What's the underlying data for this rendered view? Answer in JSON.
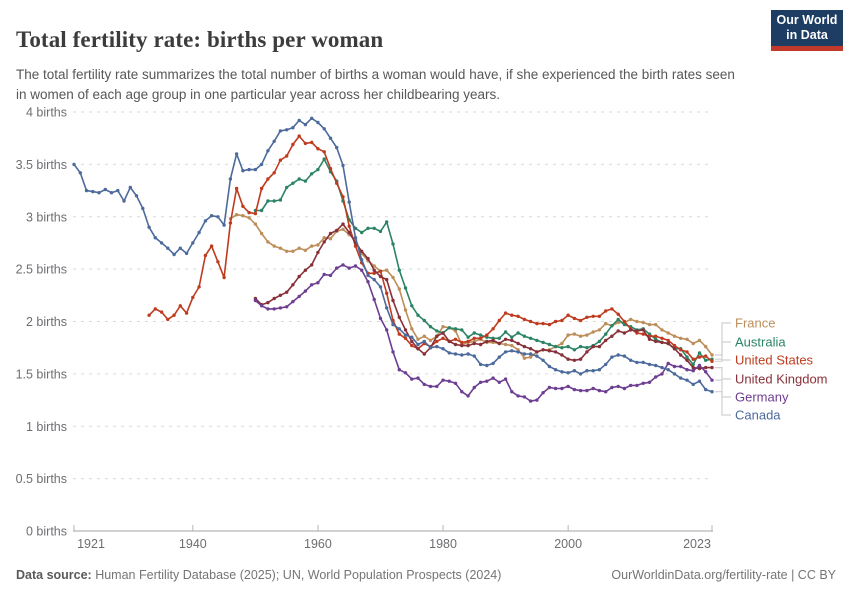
{
  "header": {
    "title": "Total fertility rate: births per woman",
    "subtitle": "The total fertility rate summarizes the total number of births a woman would have, if she experienced the birth rates seen in women of each age group in one particular year across her childbearing years.",
    "logo_line1": "Our World",
    "logo_line2": "in Data"
  },
  "footer": {
    "source_label": "Data source:",
    "source_text": " Human Fertility Database (2025); UN, World Population Prospects (2024)",
    "credit": "OurWorldinData.org/fertility-rate | CC BY"
  },
  "colors": {
    "logo_navy": "#1d3d63",
    "logo_red": "#c0392b",
    "grid": "#dadada",
    "axis": "#a3a3a3",
    "tick": "#b5b5b5",
    "connector": "#d0d0d0",
    "axis_text": "#6e6e73"
  },
  "chart_data": {
    "type": "line",
    "title": "Total fertility rate: births per woman",
    "xlabel": "",
    "ylabel": "births per woman",
    "xlim": [
      1921,
      2023
    ],
    "ylim": [
      0,
      4
    ],
    "x_ticks": [
      1921,
      1940,
      1960,
      1980,
      2000,
      2023
    ],
    "y_ticks": [
      0,
      0.5,
      1,
      1.5,
      2,
      2.5,
      3,
      3.5,
      4
    ],
    "y_tick_suffix": " births",
    "grid": "horizontal-dashed",
    "legend_position": "right-of-lines",
    "series": [
      {
        "name": "France",
        "color": "#BC8E5A",
        "start_year": 1946,
        "values": [
          2.98,
          3.02,
          3.01,
          2.99,
          2.93,
          2.84,
          2.76,
          2.72,
          2.7,
          2.67,
          2.67,
          2.7,
          2.68,
          2.72,
          2.73,
          2.8,
          2.79,
          2.86,
          2.88,
          2.83,
          2.78,
          2.65,
          2.58,
          2.53,
          2.48,
          2.49,
          2.42,
          2.31,
          2.11,
          1.93,
          1.83,
          1.86,
          1.82,
          1.86,
          1.95,
          1.94,
          1.91,
          1.78,
          1.8,
          1.81,
          1.83,
          1.8,
          1.8,
          1.79,
          1.78,
          1.77,
          1.73,
          1.65,
          1.66,
          1.71,
          1.73,
          1.73,
          1.76,
          1.79,
          1.87,
          1.88,
          1.86,
          1.87,
          1.9,
          1.92,
          1.98,
          1.96,
          1.99,
          1.99,
          2.02,
          2.0,
          1.99,
          1.97,
          1.97,
          1.92,
          1.89,
          1.86,
          1.84,
          1.83,
          1.79,
          1.82,
          1.76,
          1.68
        ]
      },
      {
        "name": "Australia",
        "color": "#2C8465",
        "start_year": 1950,
        "values": [
          3.06,
          3.06,
          3.15,
          3.15,
          3.16,
          3.28,
          3.32,
          3.36,
          3.34,
          3.41,
          3.45,
          3.55,
          3.43,
          3.34,
          3.15,
          2.97,
          2.89,
          2.85,
          2.89,
          2.89,
          2.86,
          2.95,
          2.74,
          2.49,
          2.32,
          2.15,
          2.06,
          2.01,
          1.95,
          1.91,
          1.89,
          1.94,
          1.93,
          1.92,
          1.85,
          1.89,
          1.87,
          1.85,
          1.84,
          1.84,
          1.9,
          1.85,
          1.89,
          1.86,
          1.84,
          1.82,
          1.8,
          1.78,
          1.76,
          1.75,
          1.76,
          1.73,
          1.76,
          1.75,
          1.77,
          1.81,
          1.88,
          1.96,
          2.02,
          1.97,
          1.95,
          1.92,
          1.93,
          1.88,
          1.83,
          1.8,
          1.79,
          1.74,
          1.74,
          1.66,
          1.59,
          1.7,
          1.63,
          1.64
        ]
      },
      {
        "name": "United States",
        "color": "#BF3B1F",
        "start_year": 1933,
        "values": [
          2.06,
          2.12,
          2.09,
          2.02,
          2.06,
          2.15,
          2.08,
          2.23,
          2.33,
          2.63,
          2.72,
          2.57,
          2.42,
          2.94,
          3.27,
          3.1,
          3.04,
          3.03,
          3.27,
          3.36,
          3.42,
          3.54,
          3.58,
          3.69,
          3.77,
          3.7,
          3.71,
          3.65,
          3.62,
          3.46,
          3.32,
          3.19,
          2.91,
          2.72,
          2.56,
          2.46,
          2.46,
          2.48,
          2.27,
          2.01,
          1.88,
          1.84,
          1.77,
          1.74,
          1.79,
          1.76,
          1.81,
          1.84,
          1.81,
          1.83,
          1.8,
          1.81,
          1.84,
          1.84,
          1.87,
          1.93,
          2.01,
          2.08,
          2.06,
          2.05,
          2.02,
          2.0,
          1.98,
          1.98,
          1.97,
          2.0,
          2.01,
          2.06,
          2.03,
          2.01,
          2.04,
          2.05,
          2.05,
          2.1,
          2.12,
          2.07,
          2.0,
          1.93,
          1.89,
          1.88,
          1.86,
          1.86,
          1.84,
          1.82,
          1.77,
          1.73,
          1.71,
          1.64,
          1.66,
          1.67,
          1.62
        ]
      },
      {
        "name": "United Kingdom",
        "color": "#883039",
        "start_year": 1950,
        "values": [
          2.22,
          2.16,
          2.18,
          2.22,
          2.25,
          2.28,
          2.35,
          2.43,
          2.49,
          2.54,
          2.66,
          2.76,
          2.84,
          2.87,
          2.93,
          2.85,
          2.75,
          2.67,
          2.6,
          2.49,
          2.43,
          2.4,
          2.2,
          2.04,
          1.92,
          1.81,
          1.74,
          1.69,
          1.75,
          1.86,
          1.89,
          1.81,
          1.78,
          1.77,
          1.77,
          1.79,
          1.78,
          1.81,
          1.82,
          1.79,
          1.83,
          1.82,
          1.79,
          1.76,
          1.74,
          1.71,
          1.73,
          1.72,
          1.71,
          1.68,
          1.64,
          1.63,
          1.64,
          1.71,
          1.76,
          1.76,
          1.82,
          1.86,
          1.91,
          1.89,
          1.92,
          1.91,
          1.92,
          1.83,
          1.81,
          1.8,
          1.79,
          1.74,
          1.68,
          1.63,
          1.56,
          1.55,
          1.56,
          1.56
        ]
      },
      {
        "name": "Germany",
        "color": "#6D3E91",
        "start_year": 1950,
        "values": [
          2.2,
          2.15,
          2.12,
          2.12,
          2.13,
          2.14,
          2.19,
          2.24,
          2.29,
          2.35,
          2.37,
          2.45,
          2.44,
          2.51,
          2.54,
          2.51,
          2.53,
          2.49,
          2.38,
          2.21,
          2.03,
          1.92,
          1.71,
          1.54,
          1.51,
          1.45,
          1.46,
          1.4,
          1.38,
          1.38,
          1.44,
          1.43,
          1.41,
          1.33,
          1.29,
          1.37,
          1.42,
          1.43,
          1.46,
          1.42,
          1.45,
          1.33,
          1.29,
          1.28,
          1.24,
          1.25,
          1.32,
          1.37,
          1.36,
          1.36,
          1.38,
          1.35,
          1.34,
          1.34,
          1.36,
          1.34,
          1.33,
          1.37,
          1.38,
          1.36,
          1.39,
          1.39,
          1.41,
          1.42,
          1.47,
          1.5,
          1.6,
          1.57,
          1.57,
          1.54,
          1.53,
          1.58,
          1.52,
          1.44
        ]
      },
      {
        "name": "Canada",
        "color": "#4C6A9C",
        "start_year": 1921,
        "values": [
          3.5,
          3.42,
          3.25,
          3.24,
          3.23,
          3.26,
          3.23,
          3.25,
          3.15,
          3.28,
          3.2,
          3.08,
          2.9,
          2.8,
          2.75,
          2.7,
          2.64,
          2.7,
          2.65,
          2.75,
          2.85,
          2.96,
          3.01,
          3.0,
          2.92,
          3.36,
          3.6,
          3.44,
          3.45,
          3.45,
          3.5,
          3.63,
          3.72,
          3.82,
          3.83,
          3.85,
          3.92,
          3.88,
          3.94,
          3.9,
          3.84,
          3.75,
          3.66,
          3.49,
          3.14,
          2.8,
          2.59,
          2.44,
          2.4,
          2.33,
          2.13,
          1.97,
          1.93,
          1.87,
          1.85,
          1.78,
          1.81,
          1.75,
          1.76,
          1.74,
          1.7,
          1.69,
          1.68,
          1.69,
          1.67,
          1.59,
          1.58,
          1.6,
          1.66,
          1.71,
          1.72,
          1.71,
          1.69,
          1.69,
          1.67,
          1.63,
          1.57,
          1.54,
          1.52,
          1.51,
          1.53,
          1.5,
          1.53,
          1.53,
          1.54,
          1.59,
          1.66,
          1.68,
          1.67,
          1.63,
          1.61,
          1.61,
          1.59,
          1.58,
          1.56,
          1.54,
          1.5,
          1.46,
          1.44,
          1.4,
          1.43,
          1.35,
          1.33
        ]
      }
    ],
    "legend_label_y_page": [
      323,
      342,
      360,
      379,
      397,
      415
    ]
  }
}
